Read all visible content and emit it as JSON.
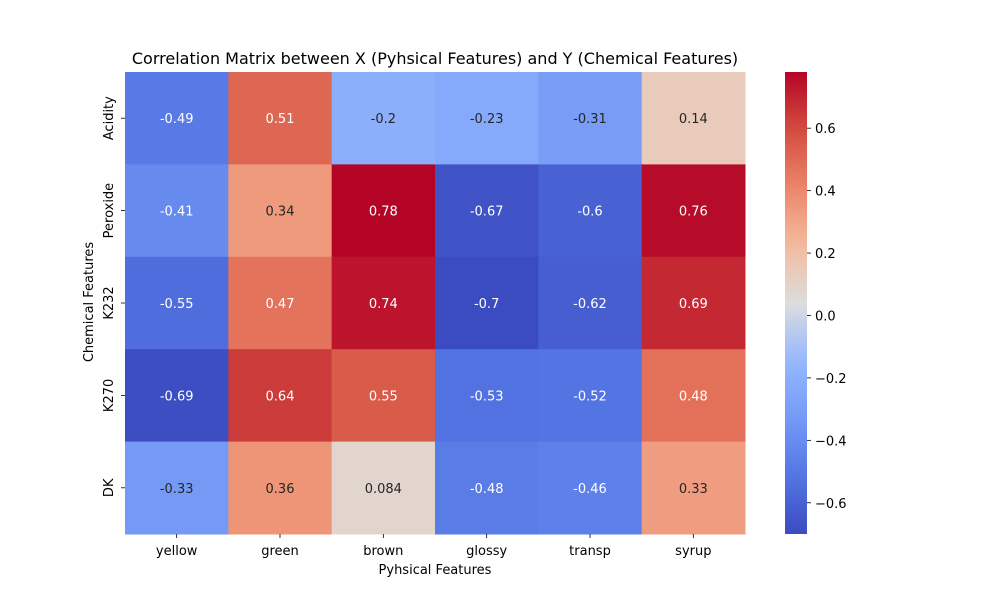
{
  "chart_data": {
    "type": "heatmap",
    "title": "Correlation Matrix between X (Pyhsical Features) and Y (Chemical Features)",
    "xlabel": "Pyhsical Features",
    "ylabel": "Chemical Features",
    "x_categories": [
      "yellow",
      "green",
      "brown",
      "glossy",
      "transp",
      "syrup"
    ],
    "y_categories": [
      "Acidity",
      "Peroxide",
      "K232",
      "K270",
      "DK"
    ],
    "values": [
      [
        -0.49,
        0.51,
        -0.2,
        -0.23,
        -0.31,
        0.14
      ],
      [
        -0.41,
        0.34,
        0.78,
        -0.67,
        -0.6,
        0.76
      ],
      [
        -0.55,
        0.47,
        0.74,
        -0.7,
        -0.62,
        0.69
      ],
      [
        -0.69,
        0.64,
        0.55,
        -0.53,
        -0.52,
        0.48
      ],
      [
        -0.33,
        0.36,
        0.084,
        -0.48,
        -0.46,
        0.33
      ]
    ],
    "cell_labels": [
      [
        "-0.49",
        "0.51",
        "-0.2",
        "-0.23",
        "-0.31",
        "0.14"
      ],
      [
        "-0.41",
        "0.34",
        "0.78",
        "-0.67",
        "-0.6",
        "0.76"
      ],
      [
        "-0.55",
        "0.47",
        "0.74",
        "-0.7",
        "-0.62",
        "0.69"
      ],
      [
        "-0.69",
        "0.64",
        "0.55",
        "-0.53",
        "-0.52",
        "0.48"
      ],
      [
        "-0.33",
        "0.36",
        "0.084",
        "-0.48",
        "-0.46",
        "0.33"
      ]
    ],
    "colormap": "coolwarm",
    "colorbar": {
      "range": [
        -0.7,
        0.78
      ],
      "ticks": [
        -0.6,
        -0.4,
        -0.2,
        0.0,
        0.2,
        0.4,
        0.6
      ],
      "tick_labels": [
        "−0.6",
        "−0.4",
        "−0.2",
        "0.0",
        "0.2",
        "0.4",
        "0.6"
      ]
    },
    "grid": false
  }
}
